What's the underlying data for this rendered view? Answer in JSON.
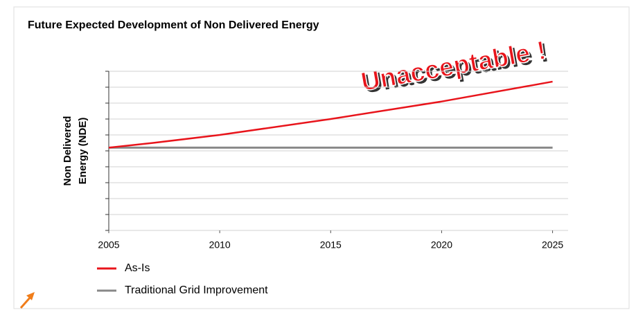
{
  "chart_data": {
    "type": "line",
    "title": "Future Expected Development of Non Delivered Energy",
    "ylabel": [
      "Non Delivered",
      "Energy (NDE)"
    ],
    "annotation": "Unacceptable !",
    "x": [
      2005,
      2007,
      2010,
      2015,
      2020,
      2025
    ],
    "series": [
      {
        "name": "As-Is",
        "color": "#e8141b",
        "values": [
          5.2,
          5.5,
          6.0,
          7.0,
          8.1,
          9.35
        ]
      },
      {
        "name": "Traditional Grid Improvement",
        "color": "#888888",
        "values": [
          5.2,
          5.2,
          5.2,
          5.2,
          5.2,
          5.2
        ]
      }
    ],
    "xlim": [
      2005,
      2025.7
    ],
    "xticks": [
      2005,
      2010,
      2015,
      2020,
      2025
    ],
    "ylim": [
      0,
      10
    ],
    "yticks": [
      0,
      1,
      2,
      3,
      4,
      5,
      6,
      7,
      8,
      9,
      10
    ],
    "grid": true
  }
}
